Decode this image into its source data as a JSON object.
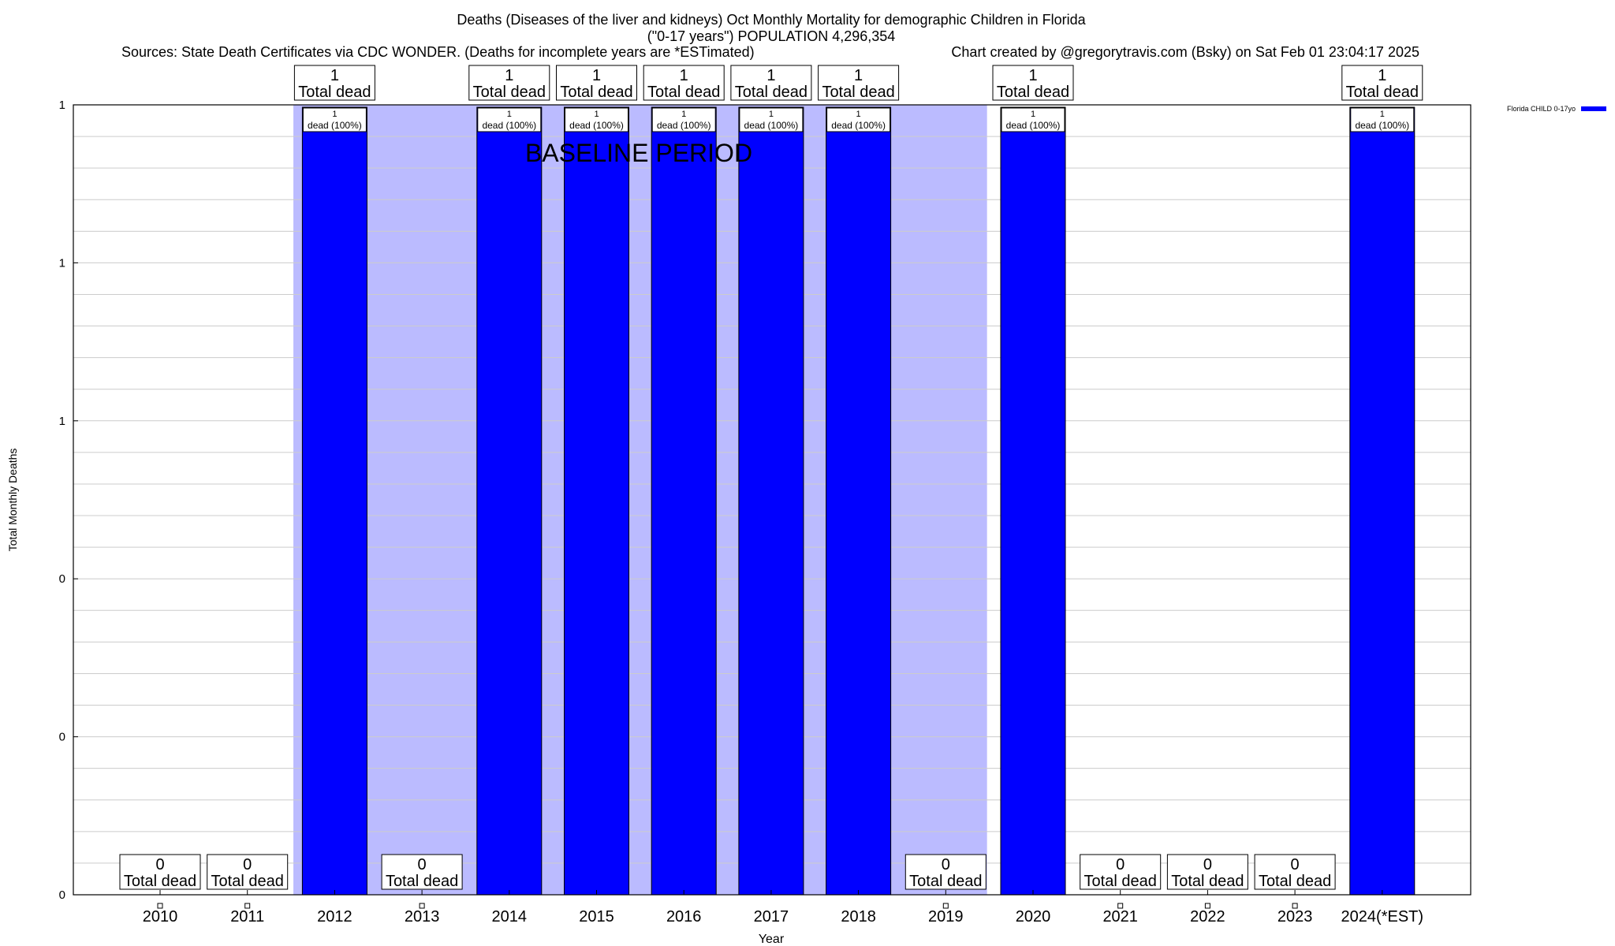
{
  "header": {
    "title_line1": "Deaths (Diseases of the liver and kidneys) Oct Monthly Mortality for demographic Children in Florida",
    "title_line2": "(\"0-17 years\") POPULATION 4,296,354",
    "sources": "Sources: State Death Certificates via CDC WONDER. (Deaths for incomplete years are *ESTimated)",
    "credit": "Chart created by @gregorytravis.com (Bsky) on Sat Feb 01 23:04:17 2025"
  },
  "chart_data": {
    "type": "bar",
    "xlabel": "Year",
    "ylabel": "Total Monthly Deaths",
    "ylim": [
      0,
      1
    ],
    "y_tick_labels": [
      "0",
      "0",
      "0",
      "1",
      "1",
      "1"
    ],
    "grid": true,
    "legend_position": "top-right",
    "categories": [
      "2010",
      "2011",
      "2012",
      "2013",
      "2014",
      "2015",
      "2016",
      "2017",
      "2018",
      "2019",
      "2020",
      "2021",
      "2022",
      "2023",
      "2024(*EST)"
    ],
    "series": [
      {
        "name": "Florida CHILD 0-17yo",
        "color": "#0000ff",
        "values": [
          0,
          0,
          1,
          0,
          1,
          1,
          1,
          1,
          1,
          0,
          1,
          0,
          0,
          0,
          1
        ]
      }
    ],
    "total_labels": [
      "0",
      "0",
      "1",
      "0",
      "1",
      "1",
      "1",
      "1",
      "1",
      "0",
      "1",
      "0",
      "0",
      "0",
      "1"
    ],
    "total_suffix": "Total dead",
    "inner_labels": [
      "",
      "",
      "1",
      "",
      "1",
      "1",
      "1",
      "1",
      "1",
      "",
      "1",
      "",
      "",
      "",
      "1"
    ],
    "inner_suffix": "dead (100%)",
    "baseline_period": {
      "label": "BASELINE PERIOD",
      "start_category": "2012",
      "end_category": "2019",
      "color": "#bbbbff"
    }
  }
}
